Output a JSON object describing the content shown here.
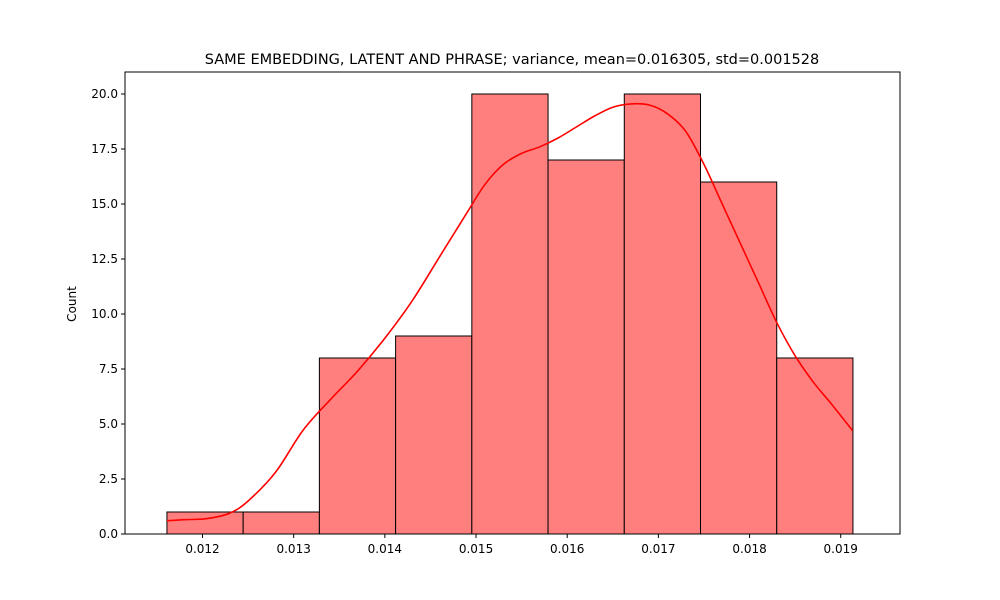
{
  "chart_data": {
    "type": "bar",
    "subtype": "histogram-with-kde",
    "title": "SAME EMBEDDING, LATENT AND PHRASE; variance, mean=0.016305, std=0.001528",
    "xlabel": "",
    "ylabel": "Count",
    "xlim": [
      0.01115,
      0.01965
    ],
    "ylim": [
      0,
      21
    ],
    "bins": [
      {
        "x0": 0.01161,
        "x1": 0.012446,
        "count": 1
      },
      {
        "x0": 0.012446,
        "x1": 0.013282,
        "count": 1
      },
      {
        "x0": 0.013282,
        "x1": 0.014118,
        "count": 8
      },
      {
        "x0": 0.014118,
        "x1": 0.014954,
        "count": 9
      },
      {
        "x0": 0.014954,
        "x1": 0.01579,
        "count": 20
      },
      {
        "x0": 0.01579,
        "x1": 0.016626,
        "count": 17
      },
      {
        "x0": 0.016626,
        "x1": 0.017462,
        "count": 20
      },
      {
        "x0": 0.017462,
        "x1": 0.018298,
        "count": 16
      },
      {
        "x0": 0.018298,
        "x1": 0.019134,
        "count": 8
      }
    ],
    "kde": {
      "x": [
        0.01161,
        0.0118,
        0.01205,
        0.0123,
        0.0125,
        0.0128,
        0.0131,
        0.0134,
        0.0137,
        0.014,
        0.0143,
        0.0146,
        0.0149,
        0.0151,
        0.0153,
        0.0155,
        0.0157,
        0.0159,
        0.0161,
        0.0163,
        0.0165,
        0.0167,
        0.0169,
        0.0171,
        0.0173,
        0.0175,
        0.0177,
        0.0179,
        0.0181,
        0.0183,
        0.0185,
        0.0187,
        0.0189,
        0.01913
      ],
      "y": [
        0.6,
        0.65,
        0.7,
        0.95,
        1.5,
        2.8,
        4.7,
        6.1,
        7.4,
        8.9,
        10.6,
        12.6,
        14.6,
        15.9,
        16.8,
        17.3,
        17.6,
        18.0,
        18.5,
        19.0,
        19.4,
        19.55,
        19.5,
        19.1,
        18.3,
        16.8,
        15.0,
        13.2,
        11.4,
        9.6,
        8.1,
        6.9,
        5.9,
        4.7
      ]
    },
    "xticks": [
      0.012,
      0.013,
      0.014,
      0.015,
      0.016,
      0.017,
      0.018,
      0.019
    ],
    "xtick_labels": [
      "0.012",
      "0.013",
      "0.014",
      "0.015",
      "0.016",
      "0.017",
      "0.018",
      "0.019"
    ],
    "yticks": [
      0.0,
      2.5,
      5.0,
      7.5,
      10.0,
      12.5,
      15.0,
      17.5,
      20.0
    ],
    "ytick_labels": [
      "0.0",
      "2.5",
      "5.0",
      "7.5",
      "10.0",
      "12.5",
      "15.0",
      "17.5",
      "20.0"
    ],
    "grid": false,
    "legend": "none",
    "colors": {
      "bar_fill": "#ff7f7f",
      "bar_edge": "#000000",
      "kde_line": "#ff0000"
    }
  }
}
